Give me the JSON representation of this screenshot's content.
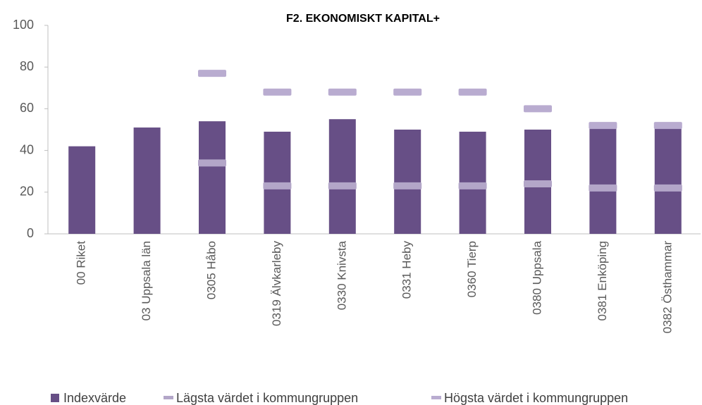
{
  "chart_data": {
    "type": "bar",
    "title": "F2. EKONOMISKT KAPITAL+",
    "categories": [
      "00 Riket",
      "03 Uppsala län",
      "0305 Håbo",
      "0319 Älvkarleby",
      "0330 Knivsta",
      "0331 Heby",
      "0360 Tierp",
      "0380 Uppsala",
      "0381 Enköping",
      "0382 Östhammar"
    ],
    "series": [
      {
        "name": "Indexvärde",
        "color": "#674f86",
        "marker": "bar",
        "values": [
          42,
          51,
          54,
          49,
          55,
          50,
          49,
          50,
          52,
          52
        ]
      },
      {
        "name": "Lägsta värdet i kommungruppen",
        "color": "#b3a6c8",
        "marker": "dash",
        "values": [
          null,
          null,
          34,
          23,
          23,
          23,
          23,
          24,
          22,
          22
        ]
      },
      {
        "name": "Högsta värdet i kommungruppen",
        "color": "#b9acd0",
        "marker": "dash",
        "values": [
          null,
          null,
          77,
          68,
          68,
          68,
          68,
          60,
          52,
          52
        ]
      }
    ],
    "ylim": [
      0,
      100
    ],
    "yticks": [
      0,
      20,
      40,
      60,
      80,
      100
    ],
    "grid": false
  }
}
